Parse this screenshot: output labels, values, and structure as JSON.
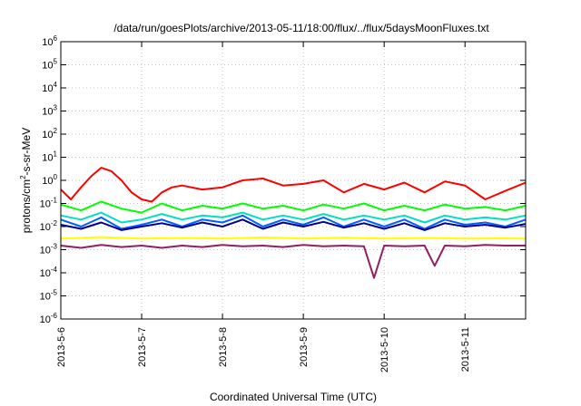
{
  "chart_data": {
    "type": "line",
    "title": "/data/run/goesPlots/archive/2013-05-11/18:00/flux/../flux/5daysMoonFluxes.txt",
    "xlabel": "Coordinated Universal Time (UTC)",
    "ylabel_prefix": "protons/cm",
    "ylabel_sup": "2",
    "ylabel_suffix": "-s-sr-MeV",
    "yscale": "log",
    "ylim": [
      1e-06,
      1000000.0
    ],
    "xlim": [
      "2013-05-06 00:00",
      "2013-05-11 18:00"
    ],
    "grid": true,
    "legend": "none",
    "x_ticks": [
      "2013-5-6",
      "2013-5-7",
      "2013-5-8",
      "2013-5-9",
      "2013-5-10",
      "2013-5-11"
    ],
    "y_ticks": [
      {
        "base": "10",
        "exp": "-6"
      },
      {
        "base": "10",
        "exp": "-5"
      },
      {
        "base": "10",
        "exp": "-4"
      },
      {
        "base": "10",
        "exp": "-3"
      },
      {
        "base": "10",
        "exp": "-2"
      },
      {
        "base": "10",
        "exp": "-1"
      },
      {
        "base": "10",
        "exp": "0"
      },
      {
        "base": "10",
        "exp": "1"
      },
      {
        "base": "10",
        "exp": "2"
      },
      {
        "base": "10",
        "exp": "3"
      },
      {
        "base": "10",
        "exp": "4"
      },
      {
        "base": "10",
        "exp": "5"
      },
      {
        "base": "10",
        "exp": "6"
      }
    ],
    "series": [
      {
        "color": "#ff0000",
        "x": [
          "2013-05-06 00:00",
          "2013-05-06 03:00",
          "2013-05-06 06:00",
          "2013-05-06 09:00",
          "2013-05-06 12:00",
          "2013-05-06 15:00",
          "2013-05-06 18:00",
          "2013-05-06 21:00",
          "2013-05-07 00:00",
          "2013-05-07 03:00",
          "2013-05-07 06:00",
          "2013-05-07 09:00",
          "2013-05-07 12:00",
          "2013-05-07 18:00",
          "2013-05-08 00:00",
          "2013-05-08 06:00",
          "2013-05-08 12:00",
          "2013-05-08 18:00",
          "2013-05-09 00:00",
          "2013-05-09 06:00",
          "2013-05-09 12:00",
          "2013-05-09 18:00",
          "2013-05-10 00:00",
          "2013-05-10 06:00",
          "2013-05-10 12:00",
          "2013-05-10 18:00",
          "2013-05-11 00:00",
          "2013-05-11 06:00",
          "2013-05-11 12:00",
          "2013-05-11 18:00"
        ],
        "y": [
          0.4,
          0.15,
          0.5,
          1.5,
          3.5,
          2.5,
          1.0,
          0.3,
          0.15,
          0.12,
          0.3,
          0.5,
          0.6,
          0.4,
          0.5,
          1.0,
          1.2,
          0.6,
          0.7,
          1.0,
          0.3,
          0.7,
          0.4,
          0.8,
          0.3,
          0.9,
          0.6,
          0.15,
          0.35,
          0.8
        ]
      },
      {
        "color": "#00ff00",
        "x": [
          "2013-05-06 00:00",
          "2013-05-06 06:00",
          "2013-05-06 12:00",
          "2013-05-06 18:00",
          "2013-05-07 00:00",
          "2013-05-07 06:00",
          "2013-05-07 12:00",
          "2013-05-07 18:00",
          "2013-05-08 00:00",
          "2013-05-08 06:00",
          "2013-05-08 12:00",
          "2013-05-08 18:00",
          "2013-05-09 00:00",
          "2013-05-09 06:00",
          "2013-05-09 12:00",
          "2013-05-09 18:00",
          "2013-05-10 00:00",
          "2013-05-10 06:00",
          "2013-05-10 12:00",
          "2013-05-10 18:00",
          "2013-05-11 00:00",
          "2013-05-11 06:00",
          "2013-05-11 12:00",
          "2013-05-11 18:00"
        ],
        "y": [
          0.09,
          0.05,
          0.12,
          0.06,
          0.04,
          0.1,
          0.05,
          0.08,
          0.06,
          0.1,
          0.06,
          0.08,
          0.05,
          0.09,
          0.06,
          0.1,
          0.05,
          0.08,
          0.05,
          0.09,
          0.06,
          0.07,
          0.05,
          0.08
        ]
      },
      {
        "color": "#00e0c0",
        "x": [
          "2013-05-06 00:00",
          "2013-05-06 06:00",
          "2013-05-06 12:00",
          "2013-05-06 18:00",
          "2013-05-07 00:00",
          "2013-05-07 06:00",
          "2013-05-07 12:00",
          "2013-05-07 18:00",
          "2013-05-08 00:00",
          "2013-05-08 06:00",
          "2013-05-08 12:00",
          "2013-05-08 18:00",
          "2013-05-09 00:00",
          "2013-05-09 06:00",
          "2013-05-09 12:00",
          "2013-05-09 18:00",
          "2013-05-10 00:00",
          "2013-05-10 06:00",
          "2013-05-10 12:00",
          "2013-05-10 18:00",
          "2013-05-11 00:00",
          "2013-05-11 06:00",
          "2013-05-11 12:00",
          "2013-05-11 18:00"
        ],
        "y": [
          0.03,
          0.02,
          0.04,
          0.015,
          0.02,
          0.035,
          0.02,
          0.03,
          0.025,
          0.04,
          0.02,
          0.03,
          0.02,
          0.035,
          0.02,
          0.03,
          0.02,
          0.03,
          0.015,
          0.03,
          0.02,
          0.025,
          0.02,
          0.03
        ]
      },
      {
        "color": "#0060ff",
        "x": [
          "2013-05-06 00:00",
          "2013-05-06 06:00",
          "2013-05-06 12:00",
          "2013-05-06 18:00",
          "2013-05-07 00:00",
          "2013-05-07 06:00",
          "2013-05-07 12:00",
          "2013-05-07 18:00",
          "2013-05-08 00:00",
          "2013-05-08 06:00",
          "2013-05-08 12:00",
          "2013-05-08 18:00",
          "2013-05-09 00:00",
          "2013-05-09 06:00",
          "2013-05-09 12:00",
          "2013-05-09 18:00",
          "2013-05-10 00:00",
          "2013-05-10 06:00",
          "2013-05-10 12:00",
          "2013-05-10 18:00",
          "2013-05-11 00:00",
          "2013-05-11 06:00",
          "2013-05-11 12:00",
          "2013-05-11 18:00"
        ],
        "y": [
          0.02,
          0.01,
          0.025,
          0.008,
          0.012,
          0.02,
          0.01,
          0.02,
          0.015,
          0.03,
          0.01,
          0.02,
          0.012,
          0.025,
          0.01,
          0.02,
          0.01,
          0.02,
          0.008,
          0.02,
          0.012,
          0.015,
          0.01,
          0.02
        ]
      },
      {
        "color": "#000090",
        "x": [
          "2013-05-06 00:00",
          "2013-05-06 06:00",
          "2013-05-06 12:00",
          "2013-05-06 18:00",
          "2013-05-07 00:00",
          "2013-05-07 06:00",
          "2013-05-07 12:00",
          "2013-05-07 18:00",
          "2013-05-08 00:00",
          "2013-05-08 06:00",
          "2013-05-08 12:00",
          "2013-05-08 18:00",
          "2013-05-09 00:00",
          "2013-05-09 06:00",
          "2013-05-09 12:00",
          "2013-05-09 18:00",
          "2013-05-10 00:00",
          "2013-05-10 06:00",
          "2013-05-10 12:00",
          "2013-05-10 18:00",
          "2013-05-11 00:00",
          "2013-05-11 06:00",
          "2013-05-11 12:00",
          "2013-05-11 18:00"
        ],
        "y": [
          0.012,
          0.008,
          0.015,
          0.007,
          0.01,
          0.014,
          0.009,
          0.015,
          0.01,
          0.02,
          0.008,
          0.015,
          0.01,
          0.016,
          0.009,
          0.014,
          0.008,
          0.014,
          0.007,
          0.014,
          0.01,
          0.012,
          0.009,
          0.013
        ]
      },
      {
        "color": "#ffff00",
        "x": [
          "2013-05-06 00:00",
          "2013-05-06 12:00",
          "2013-05-07 00:00",
          "2013-05-07 12:00",
          "2013-05-08 00:00",
          "2013-05-08 12:00",
          "2013-05-09 00:00",
          "2013-05-09 12:00",
          "2013-05-10 00:00",
          "2013-05-10 12:00",
          "2013-05-11 00:00",
          "2013-05-11 12:00",
          "2013-05-11 18:00"
        ],
        "y": [
          0.003,
          0.0035,
          0.003,
          0.0032,
          0.003,
          0.0034,
          0.003,
          0.0033,
          0.003,
          0.0032,
          0.003,
          0.0031,
          0.003
        ]
      },
      {
        "color": "#902060",
        "x": [
          "2013-05-06 00:00",
          "2013-05-06 06:00",
          "2013-05-06 12:00",
          "2013-05-06 18:00",
          "2013-05-07 00:00",
          "2013-05-07 06:00",
          "2013-05-07 12:00",
          "2013-05-07 18:00",
          "2013-05-08 00:00",
          "2013-05-08 06:00",
          "2013-05-08 12:00",
          "2013-05-08 18:00",
          "2013-05-09 00:00",
          "2013-05-09 06:00",
          "2013-05-09 12:00",
          "2013-05-09 18:00",
          "2013-05-09 21:00",
          "2013-05-10 00:00",
          "2013-05-10 06:00",
          "2013-05-10 12:00",
          "2013-05-10 15:00",
          "2013-05-10 18:00",
          "2013-05-11 00:00",
          "2013-05-11 06:00",
          "2013-05-11 12:00",
          "2013-05-11 18:00"
        ],
        "y": [
          0.0015,
          0.0012,
          0.0016,
          0.0013,
          0.0015,
          0.0012,
          0.0015,
          0.0013,
          0.0016,
          0.0014,
          0.0015,
          0.0013,
          0.0016,
          0.0014,
          0.0015,
          0.0014,
          6e-05,
          0.0015,
          0.0014,
          0.0015,
          0.0002,
          0.0015,
          0.0014,
          0.0016,
          0.0015,
          0.0015
        ]
      }
    ]
  }
}
